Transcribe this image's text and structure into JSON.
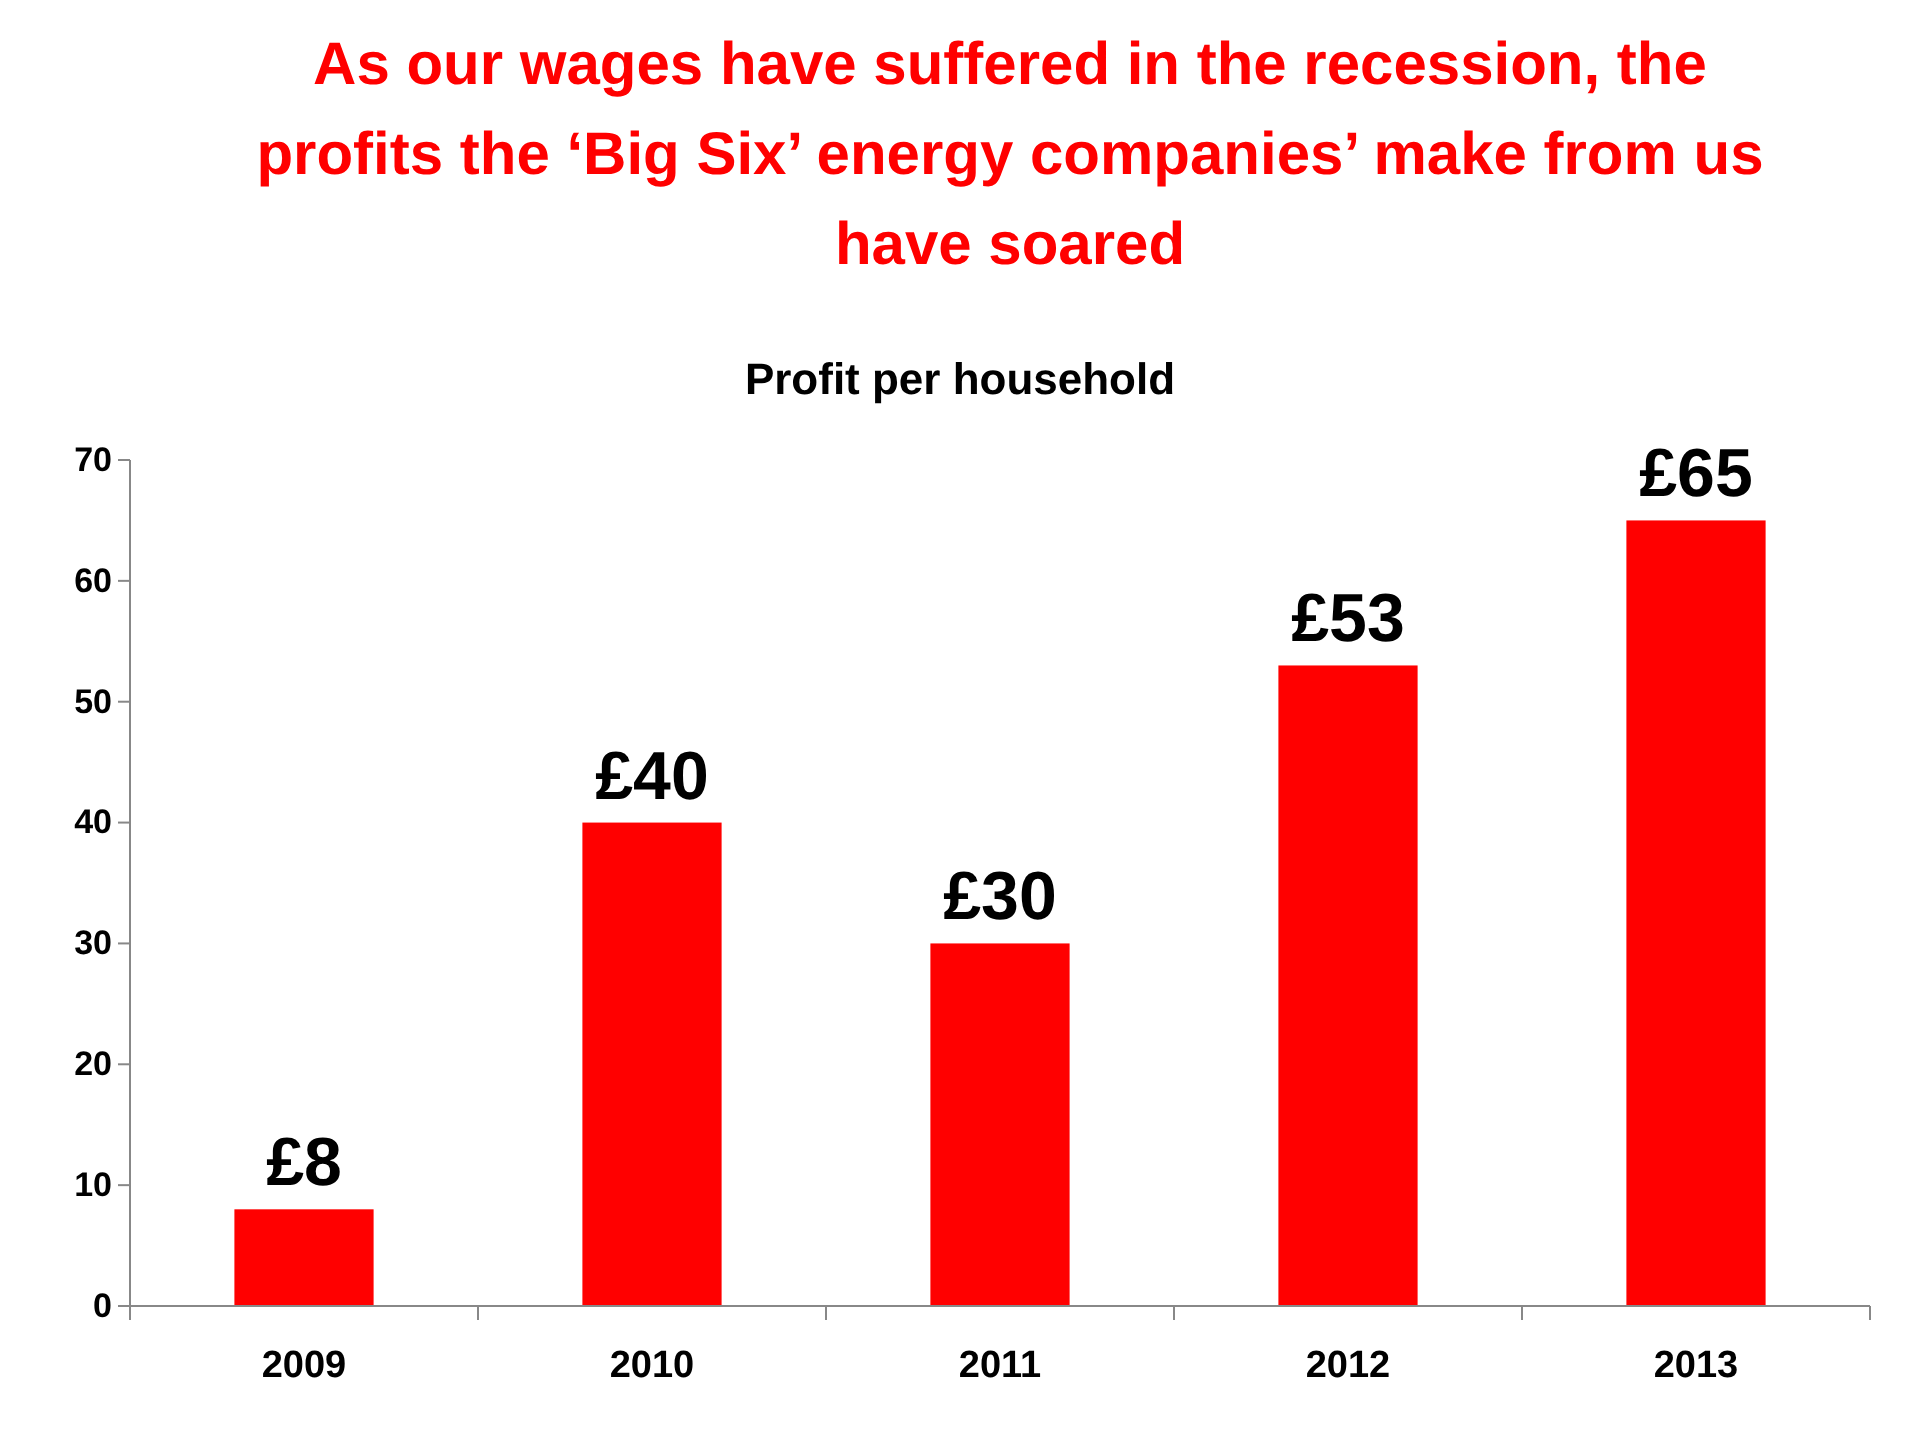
{
  "chart_data": {
    "type": "bar",
    "title": "As our wages have suffered in the recession, the profits the ‘Big Six’ energy companies’ make from us have soared",
    "subtitle": "Profit per household",
    "categories": [
      "2009",
      "2010",
      "2011",
      "2012",
      "2013"
    ],
    "values": [
      8,
      40,
      30,
      53,
      65
    ],
    "value_labels": [
      "£8",
      "£40",
      "£30",
      "£53",
      "£65"
    ],
    "color": "#ff0000",
    "ylim": [
      0,
      70
    ],
    "yticks": [
      0,
      10,
      20,
      30,
      40,
      50,
      60,
      70
    ],
    "grid": false
  }
}
